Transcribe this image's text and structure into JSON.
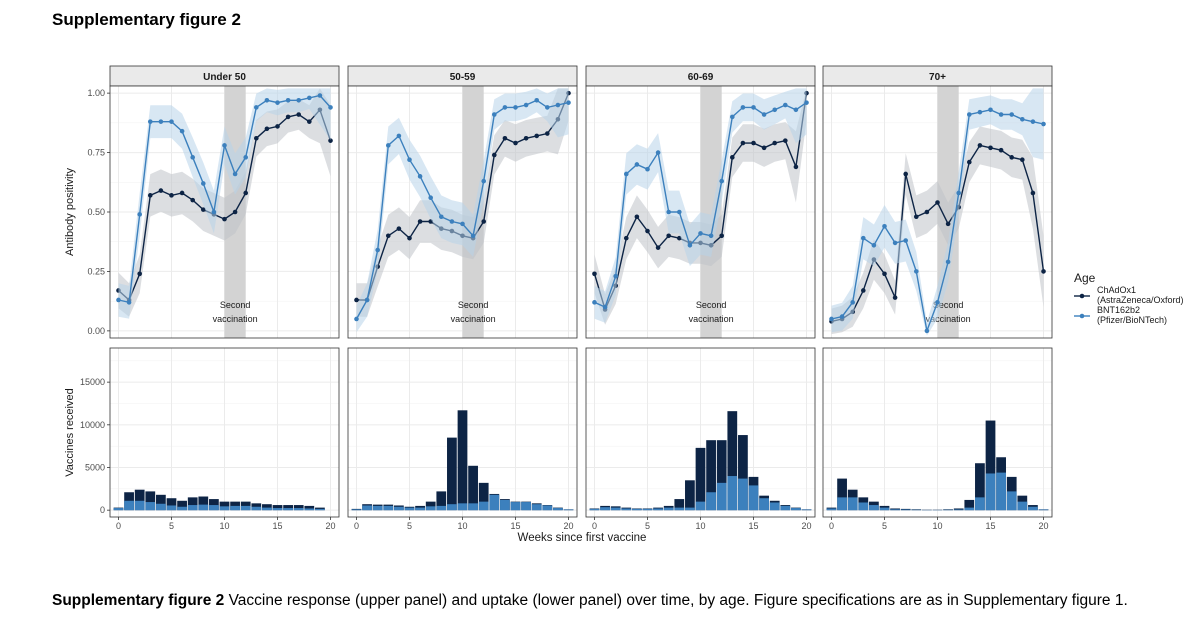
{
  "heading": "Supplementary figure 2",
  "caption": {
    "label": "Supplementary figure 2",
    "text": " Vaccine response (upper panel) and uptake (lower panel) over time, by age. Figure specifications are as in Supplementary figure 1."
  },
  "colors": {
    "chadox1": "#0d2445",
    "bnt": "#3c80bd",
    "bnt_ribbon": "#b8d3ea",
    "chadox1_ribbon": "#bfc3c8",
    "shade": "#d3d3d3",
    "strip": "#eaeaea",
    "grid": "#ebebeb"
  },
  "chart_data": {
    "type": "line",
    "panels": [
      "Under 50",
      "50-59",
      "60-69",
      "70+"
    ],
    "xlabel": "Weeks since first vaccine",
    "x_ticks": [
      0,
      5,
      10,
      15,
      20
    ],
    "xlim": [
      -0.8,
      20.8
    ],
    "shaded_weeks": [
      10,
      12
    ],
    "shade_label": [
      "Second",
      "vaccination"
    ],
    "legend": {
      "title": "Age",
      "entries": [
        {
          "key": "chadox1",
          "label": [
            "ChAdOx1",
            "(AstraZeneca/Oxford)"
          ]
        },
        {
          "key": "bnt",
          "label": [
            "BNT162b2",
            "(Pfizer/BioNTech)"
          ]
        }
      ]
    },
    "positivity": {
      "ylabel": "Antibody positivity",
      "ylim": [
        -0.03,
        1.03
      ],
      "y_ticks": [
        0,
        0.25,
        0.5,
        0.75,
        1
      ],
      "y_tick_labels": [
        "0.00",
        "0.25",
        "0.50",
        "0.75",
        "1.00"
      ],
      "weeks": [
        0,
        1,
        2,
        3,
        4,
        5,
        6,
        7,
        8,
        9,
        10,
        11,
        12,
        13,
        14,
        15,
        16,
        17,
        18,
        19,
        20
      ],
      "series": [
        {
          "name": "ChAdOx1 (AstraZeneca/Oxford)",
          "key": "chadox1",
          "values": [
            [
              0.17,
              0.13,
              0.24,
              0.57,
              0.59,
              0.57,
              0.58,
              0.55,
              0.51,
              0.49,
              0.47,
              0.5,
              0.58,
              0.81,
              0.85,
              0.86,
              0.9,
              0.91,
              0.88,
              0.93,
              0.8
            ],
            [
              0.13,
              0.13,
              0.27,
              0.4,
              0.43,
              0.39,
              0.46,
              0.46,
              0.43,
              0.42,
              0.4,
              0.39,
              0.46,
              0.74,
              0.81,
              0.79,
              0.81,
              0.82,
              0.83,
              0.89,
              1.0
            ],
            [
              0.24,
              0.09,
              0.19,
              0.39,
              0.48,
              0.42,
              0.35,
              0.4,
              0.39,
              0.37,
              0.37,
              0.36,
              0.4,
              0.73,
              0.79,
              0.79,
              0.77,
              0.79,
              0.8,
              0.69,
              1.0
            ],
            [
              0.04,
              0.05,
              0.08,
              0.17,
              0.3,
              0.24,
              0.14,
              0.66,
              0.48,
              0.5,
              0.54,
              0.45,
              0.52,
              0.71,
              0.78,
              0.77,
              0.76,
              0.73,
              0.72,
              0.58,
              0.25
            ]
          ]
        },
        {
          "name": "BNT162b2 (Pfizer/BioNTech)",
          "key": "bnt",
          "values": [
            [
              0.13,
              0.12,
              0.49,
              0.88,
              0.88,
              0.88,
              0.84,
              0.73,
              0.62,
              0.5,
              0.78,
              0.66,
              0.73,
              0.94,
              0.97,
              0.96,
              0.97,
              0.97,
              0.98,
              0.99,
              0.94
            ],
            [
              0.05,
              0.13,
              0.34,
              0.78,
              0.82,
              0.72,
              0.65,
              0.56,
              0.48,
              0.46,
              0.45,
              0.4,
              0.63,
              0.91,
              0.94,
              0.94,
              0.95,
              0.97,
              0.94,
              0.95,
              0.96
            ],
            [
              0.12,
              0.1,
              0.23,
              0.66,
              0.7,
              0.68,
              0.75,
              0.5,
              0.5,
              0.36,
              0.41,
              0.4,
              0.63,
              0.9,
              0.94,
              0.94,
              0.91,
              0.93,
              0.95,
              0.93,
              0.96
            ],
            [
              0.05,
              0.06,
              0.12,
              0.39,
              0.36,
              0.44,
              0.37,
              0.38,
              0.25,
              0.0,
              0.12,
              0.29,
              0.58,
              0.91,
              0.92,
              0.93,
              0.91,
              0.91,
              0.89,
              0.88,
              0.87
            ]
          ]
        }
      ]
    },
    "uptake": {
      "ylabel": "Vaccines received",
      "ylim": [
        -800,
        19000
      ],
      "y_ticks": [
        0,
        5000,
        10000,
        15000
      ],
      "y_tick_labels": [
        "0",
        "5000",
        "10000",
        "15000"
      ],
      "weeks": [
        0,
        1,
        2,
        3,
        4,
        5,
        6,
        7,
        8,
        9,
        10,
        11,
        12,
        13,
        14,
        15,
        16,
        17,
        18,
        19,
        20
      ],
      "total": [
        [
          300,
          2100,
          2400,
          2200,
          1800,
          1400,
          1100,
          1500,
          1600,
          1300,
          1000,
          1000,
          1000,
          800,
          700,
          600,
          600,
          600,
          500,
          300,
          0
        ],
        [
          150,
          700,
          650,
          650,
          550,
          400,
          500,
          1000,
          2200,
          8500,
          11700,
          5200,
          3200,
          1900,
          1300,
          1000,
          1000,
          800,
          600,
          300,
          100
        ],
        [
          200,
          500,
          450,
          300,
          200,
          200,
          300,
          500,
          1300,
          3500,
          7300,
          8200,
          8200,
          11600,
          8800,
          3900,
          1700,
          1100,
          600,
          300,
          100
        ],
        [
          300,
          3700,
          2400,
          1500,
          1000,
          500,
          200,
          150,
          100,
          50,
          50,
          100,
          200,
          1200,
          5500,
          10500,
          6200,
          3900,
          1700,
          600,
          100
        ]
      ],
      "bnt": [
        [
          250,
          1100,
          1100,
          950,
          750,
          550,
          400,
          600,
          650,
          600,
          450,
          500,
          500,
          400,
          300,
          250,
          250,
          250,
          200,
          150,
          0
        ],
        [
          100,
          550,
          500,
          500,
          400,
          300,
          300,
          450,
          500,
          700,
          800,
          800,
          1000,
          1800,
          1200,
          950,
          950,
          700,
          550,
          250,
          80
        ],
        [
          150,
          350,
          300,
          200,
          150,
          150,
          200,
          300,
          300,
          300,
          1000,
          2100,
          3200,
          4000,
          3700,
          2900,
          1400,
          900,
          500,
          250,
          80
        ],
        [
          200,
          1500,
          1500,
          900,
          600,
          300,
          100,
          80,
          50,
          30,
          30,
          50,
          80,
          300,
          1500,
          4300,
          4400,
          2200,
          1000,
          400,
          80
        ]
      ]
    }
  }
}
